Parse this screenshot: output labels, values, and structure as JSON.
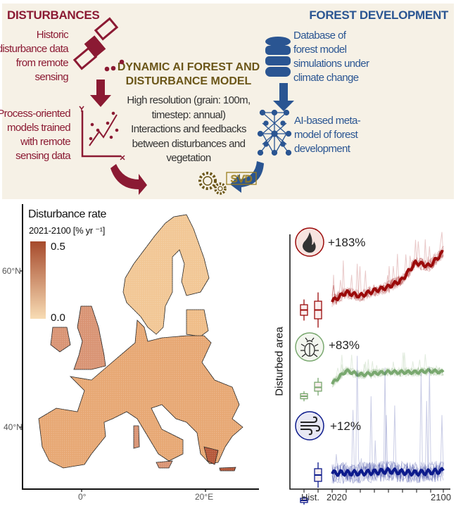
{
  "top": {
    "left_heading": "DISTURBANCES",
    "right_heading": "FOREST DEVELOPMENT",
    "left_items": [
      {
        "lines": [
          "Historic",
          "disturbance data",
          "from remote",
          "sensing"
        ],
        "icon": "satellite-icon"
      },
      {
        "lines": [
          "Process-oriented",
          "models trained",
          "with remote",
          "sensing data"
        ],
        "icon": "scatter-plot-icon"
      }
    ],
    "right_items": [
      {
        "lines": [
          "Database of",
          "forest model",
          "simulations under",
          "climate change"
        ],
        "icon": "database-icon"
      },
      {
        "lines": [
          "AI-based meta-",
          "model of forest",
          "development"
        ],
        "icon": "neural-network-icon"
      }
    ],
    "center_title": [
      "DYNAMIC AI FOREST AND",
      "DISTURBANCE MODEL"
    ],
    "center_body": [
      "High resolution (grain: 100m,",
      "timestep: annual)",
      "Interactions and feedbacks",
      "between disturbances and",
      "vegetation"
    ],
    "logo_text": "SVD",
    "colors": {
      "disturbance": "#8b1a33",
      "forest": "#2a5592",
      "model": "#6b5618",
      "panel_bg": "#f6f1e6"
    }
  },
  "map": {
    "legend_title": "Disturbance rate",
    "legend_subtitle": "2021-2100 [% yr ⁻¹]",
    "legend_max": "0.5",
    "legend_min": "0.0",
    "lat_labels": [
      "60°N",
      "40°N"
    ],
    "lon_labels": [
      "0°",
      "20°E"
    ],
    "colors": {
      "low": "#f8dcb4",
      "high": "#a64a2c"
    }
  },
  "chart_data": {
    "type": "line",
    "ylabel": "Disturbed area",
    "xlabels": [
      "Hist.",
      "2020",
      "2100"
    ],
    "xlim": [
      2020,
      2100
    ],
    "years": [
      2020,
      2030,
      2040,
      2050,
      2060,
      2070,
      2080,
      2090,
      2100
    ],
    "series": [
      {
        "name": "fire",
        "icon": "fire-icon",
        "change": "+183%",
        "color": "#9b0a0a",
        "mean": [
          1.0,
          1.25,
          1.15,
          1.3,
          1.4,
          1.6,
          2.1,
          2.0,
          2.4
        ],
        "hist_box": [
          0.6,
          0.75,
          0.9
        ],
        "future_box": [
          0.5,
          0.75,
          1.0
        ]
      },
      {
        "name": "bark beetle",
        "icon": "beetle-icon",
        "change": "+83%",
        "color": "#79a86f",
        "mean": [
          1.0,
          1.5,
          1.35,
          1.4,
          1.45,
          1.45,
          1.45,
          1.5,
          1.45
        ],
        "hist_box": [
          0.4,
          0.5,
          0.6
        ],
        "future_box": [
          0.7,
          0.85,
          1.05
        ]
      },
      {
        "name": "wind",
        "icon": "wind-icon",
        "change": "+12%",
        "color": "#0c1a8c",
        "mean": [
          1.0,
          1.0,
          1.0,
          1.02,
          1.05,
          1.02,
          1.0,
          1.02,
          1.05
        ],
        "hist_box": [
          0.3,
          0.35,
          0.4
        ],
        "future_box": [
          0.8,
          0.95,
          1.1
        ]
      }
    ]
  }
}
